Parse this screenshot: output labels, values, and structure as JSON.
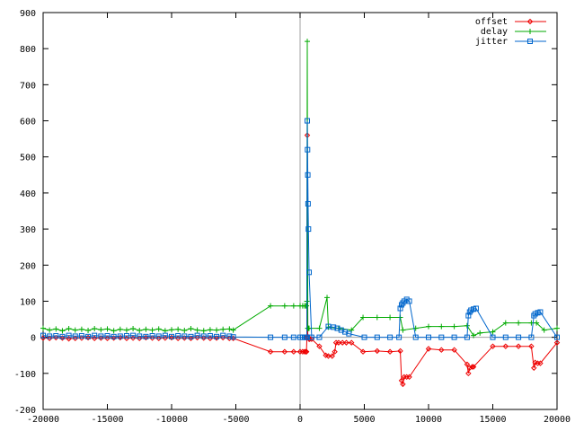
{
  "chart_data": {
    "type": "line",
    "title": "",
    "xlabel": "",
    "ylabel": "",
    "xlim": [
      -20000,
      20000
    ],
    "ylim": [
      -200,
      900
    ],
    "x_ticks": [
      -20000,
      -15000,
      -10000,
      -5000,
      0,
      5000,
      10000,
      15000,
      20000
    ],
    "y_ticks": [
      -200,
      -100,
      0,
      100,
      200,
      300,
      400,
      500,
      600,
      700,
      800,
      900
    ],
    "x_tick_labels": [
      "-20000",
      "-15000",
      "-10000",
      "-5000",
      "0",
      "5000",
      "10000",
      "15000",
      "20000"
    ],
    "y_tick_labels": [
      "-200",
      "-100",
      "0",
      "100",
      "200",
      "300",
      "400",
      "500",
      "600",
      "700",
      "800",
      "900"
    ],
    "grid": false,
    "zero_lines": true,
    "legend_position": "top-right",
    "series": [
      {
        "name": "offset",
        "color": "#ee0000",
        "marker": "diamond",
        "x": [
          -20000,
          -19500,
          -19000,
          -18500,
          -18000,
          -17500,
          -17000,
          -16500,
          -16000,
          -15500,
          -15000,
          -14500,
          -14000,
          -13500,
          -13000,
          -12500,
          -12000,
          -11500,
          -11000,
          -10500,
          -10000,
          -9500,
          -9000,
          -8500,
          -8000,
          -7500,
          -7000,
          -6500,
          -6000,
          -5500,
          -5200,
          -2300,
          -1200,
          -500,
          0,
          200,
          350,
          450,
          500,
          530,
          560,
          600,
          650,
          700,
          750,
          900,
          1500,
          2000,
          2200,
          2500,
          2700,
          2800,
          3000,
          3300,
          3600,
          4000,
          4900,
          6000,
          7000,
          7800,
          7900,
          8000,
          8100,
          8300,
          8500,
          10000,
          11000,
          12000,
          13000,
          13100,
          13200,
          13400,
          13500,
          15000,
          16000,
          17000,
          18000,
          18200,
          18300,
          18500,
          18700,
          20000
        ],
        "y": [
          -2,
          -3,
          -1,
          -2,
          -4,
          -3,
          -2,
          -1,
          -3,
          -2,
          -3,
          -2,
          -1,
          -3,
          -2,
          -3,
          -1,
          -2,
          -3,
          -2,
          -1,
          -3,
          -2,
          -3,
          -1,
          -2,
          -3,
          -2,
          -1,
          -3,
          -3,
          -40,
          -40,
          -40,
          -40,
          -40,
          -40,
          -40,
          -40,
          0,
          560,
          2,
          0,
          -5,
          -5,
          -5,
          -25,
          -50,
          -52,
          -52,
          -40,
          -15,
          -15,
          -15,
          -15,
          -15,
          -40,
          -38,
          -40,
          -38,
          -120,
          -130,
          -110,
          -110,
          -110,
          -32,
          -35,
          -35,
          -75,
          -100,
          -85,
          -82,
          -82,
          -25,
          -25,
          -25,
          -25,
          -85,
          -70,
          -72,
          -72,
          -15
        ]
      },
      {
        "name": "delay",
        "color": "#00aa00",
        "marker": "plus",
        "x": [
          -20000,
          -19500,
          -19000,
          -18500,
          -18000,
          -17500,
          -17000,
          -16500,
          -16000,
          -15500,
          -15000,
          -14500,
          -14000,
          -13500,
          -13000,
          -12500,
          -12000,
          -11500,
          -11000,
          -10500,
          -10000,
          -9500,
          -9000,
          -8500,
          -8000,
          -7500,
          -7000,
          -6500,
          -6000,
          -5500,
          -5200,
          -2300,
          -1200,
          -500,
          0,
          200,
          350,
          450,
          500,
          530,
          560,
          600,
          650,
          700,
          1500,
          2100,
          2200,
          3000,
          4000,
          4900,
          6000,
          7000,
          7800,
          8000,
          9000,
          10000,
          11000,
          12000,
          13000,
          13500,
          14000,
          15000,
          16000,
          17000,
          18000,
          18400,
          19000,
          20000
        ],
        "y": [
          25,
          20,
          23,
          18,
          24,
          20,
          22,
          19,
          24,
          21,
          23,
          18,
          22,
          20,
          24,
          19,
          22,
          20,
          23,
          18,
          21,
          22,
          19,
          24,
          20,
          18,
          21,
          20,
          22,
          23,
          20,
          87,
          87,
          87,
          87,
          87,
          87,
          87,
          87,
          100,
          820,
          25,
          25,
          25,
          25,
          110,
          28,
          25,
          20,
          55,
          55,
          55,
          55,
          20,
          25,
          30,
          30,
          30,
          32,
          5,
          12,
          15,
          40,
          40,
          40,
          40,
          20,
          25
        ]
      },
      {
        "name": "jitter",
        "color": "#0066cc",
        "marker": "square",
        "x": [
          -20000,
          -19500,
          -19000,
          -18500,
          -18000,
          -17500,
          -17000,
          -16500,
          -16000,
          -15500,
          -15000,
          -14500,
          -14000,
          -13500,
          -13000,
          -12500,
          -12000,
          -11500,
          -11000,
          -10500,
          -10000,
          -9500,
          -9000,
          -8500,
          -8000,
          -7500,
          -7000,
          -6500,
          -6000,
          -5500,
          -5200,
          -2300,
          -1200,
          -500,
          0,
          200,
          350,
          450,
          500,
          530,
          560,
          580,
          600,
          620,
          650,
          700,
          900,
          1500,
          2200,
          2600,
          2900,
          3200,
          3500,
          3800,
          5000,
          6000,
          7000,
          7700,
          7800,
          7900,
          8000,
          8100,
          8300,
          8500,
          9000,
          10000,
          11000,
          12000,
          13000,
          13100,
          13200,
          13300,
          13500,
          13700,
          15000,
          16000,
          17000,
          18000,
          18200,
          18300,
          18500,
          18700,
          20000
        ],
        "y": [
          5,
          3,
          4,
          2,
          5,
          3,
          4,
          2,
          5,
          3,
          4,
          2,
          3,
          4,
          5,
          3,
          2,
          4,
          3,
          5,
          2,
          4,
          3,
          2,
          5,
          3,
          4,
          2,
          5,
          3,
          1,
          0,
          0,
          0,
          0,
          0,
          0,
          0,
          0,
          0,
          600,
          520,
          450,
          370,
          300,
          180,
          0,
          0,
          30,
          28,
          25,
          20,
          15,
          10,
          0,
          0,
          0,
          0,
          80,
          90,
          95,
          100,
          105,
          100,
          0,
          0,
          0,
          0,
          0,
          60,
          70,
          75,
          78,
          80,
          0,
          0,
          0,
          0,
          60,
          65,
          68,
          70,
          0
        ]
      }
    ]
  }
}
